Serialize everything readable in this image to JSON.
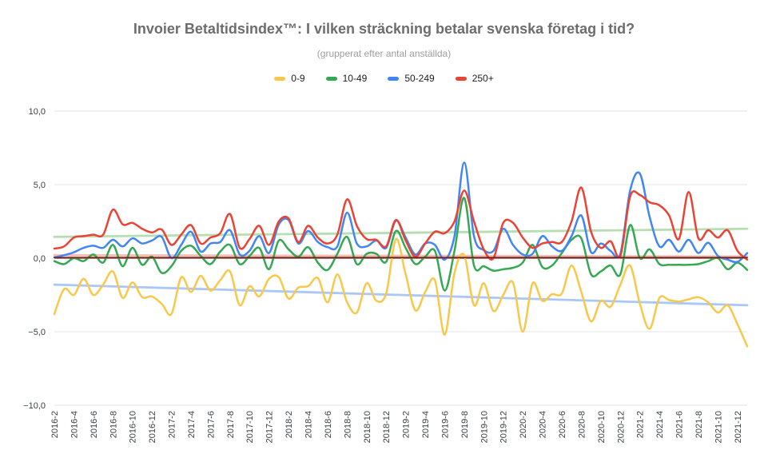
{
  "title": "Invoier Betaltidsindex™: I vilken sträckning betalar svenska företag i tid?",
  "subtitle": "(grupperat efter antal anställda)",
  "legend": [
    {
      "label": "0-9",
      "color": "#f8c84b"
    },
    {
      "label": "10-49",
      "color": "#34a853"
    },
    {
      "label": "50-249",
      "color": "#4285f4"
    },
    {
      "label": "250+",
      "color": "#ea4335"
    }
  ],
  "chart_data": {
    "type": "line",
    "smooth": true,
    "grid": true,
    "legend_position": "top",
    "ylim": [
      -10,
      10
    ],
    "yticks": [
      {
        "value": 10,
        "label": "10,0"
      },
      {
        "value": 5,
        "label": "5,0"
      },
      {
        "value": 0,
        "label": "0,0"
      },
      {
        "value": -5,
        "label": "−5,0"
      },
      {
        "value": -10,
        "label": "−10,0"
      }
    ],
    "x_tick_every": 2,
    "x": [
      "2016-2",
      "2016-3",
      "2016-4",
      "2016-5",
      "2016-6",
      "2016-7",
      "2016-8",
      "2016-9",
      "2016-10",
      "2016-11",
      "2016-12",
      "2017-1",
      "2017-2",
      "2017-3",
      "2017-4",
      "2017-5",
      "2017-6",
      "2017-7",
      "2017-8",
      "2017-9",
      "2017-10",
      "2017-11",
      "2017-12",
      "2018-1",
      "2018-2",
      "2018-3",
      "2018-4",
      "2018-5",
      "2018-6",
      "2018-7",
      "2018-8",
      "2018-9",
      "2018-10",
      "2018-11",
      "2018-12",
      "2019-1",
      "2019-2",
      "2019-3",
      "2019-4",
      "2019-5",
      "2019-6",
      "2019-7",
      "2019-8",
      "2019-9",
      "2019-10",
      "2019-11",
      "2019-12",
      "2020-1",
      "2020-2",
      "2020-3",
      "2020-4",
      "2020-5",
      "2020-6",
      "2020-7",
      "2020-8",
      "2020-9",
      "2020-10",
      "2020-11",
      "2020-12",
      "2021-1",
      "2021-2",
      "2021-3",
      "2021-4",
      "2021-5",
      "2021-6",
      "2021-7",
      "2021-8",
      "2021-9",
      "2021-10",
      "2021-11",
      "2021-12",
      "2022-1"
    ],
    "series": [
      {
        "name": "0-9",
        "color": "#f8c84b",
        "values": [
          -3.8,
          -2.1,
          -2.5,
          -1.4,
          -2.5,
          -1.8,
          -0.9,
          -2.7,
          -1.65,
          -2.65,
          -2.6,
          -3.1,
          -3.8,
          -1.3,
          -2.3,
          -1.2,
          -2.2,
          -1.5,
          -0.9,
          -3.2,
          -1.9,
          -2.6,
          -1.4,
          -1.3,
          -2.75,
          -2.0,
          -1.9,
          -1.35,
          -3.0,
          -1.1,
          -3.0,
          -3.7,
          -1.7,
          -2.9,
          -2.4,
          1.3,
          -1.1,
          -3.55,
          -2.3,
          -1.5,
          -5.2,
          -1.0,
          0.2,
          -3.2,
          -1.7,
          -3.6,
          -2.5,
          -1.65,
          -5.0,
          -1.7,
          -2.9,
          -2.45,
          -2.4,
          -0.5,
          -2.3,
          -4.3,
          -2.9,
          -3.3,
          -1.8,
          -0.5,
          -3.1,
          -4.8,
          -2.7,
          -2.85,
          -2.95,
          -2.8,
          -2.65,
          -3.0,
          -3.7,
          -3.2,
          -4.5,
          -6.0
        ]
      },
      {
        "name": "10-49",
        "color": "#34a853",
        "values": [
          -0.2,
          -0.4,
          0.0,
          -0.2,
          0.25,
          -0.3,
          0.9,
          -0.55,
          0.7,
          -0.45,
          0.1,
          -1.0,
          -0.55,
          0.5,
          0.85,
          0.15,
          -0.4,
          0.45,
          0.9,
          -0.4,
          0.15,
          0.7,
          -0.75,
          1.2,
          0.6,
          0.1,
          0.75,
          -0.3,
          -0.8,
          0.3,
          1.45,
          -0.4,
          0.3,
          0.3,
          -0.25,
          1.85,
          0.7,
          -0.4,
          0.1,
          0.5,
          -2.2,
          0.5,
          4.1,
          -0.5,
          -0.55,
          -0.85,
          -0.75,
          -0.65,
          -0.3,
          0.9,
          -0.6,
          -0.5,
          0.35,
          1.25,
          1.35,
          -1.1,
          -0.9,
          -0.5,
          -1.1,
          2.25,
          0.0,
          0.6,
          -0.4,
          -0.45,
          -0.45,
          -0.45,
          -0.4,
          -0.2,
          0.0,
          -0.75,
          -0.3,
          -0.8
        ]
      },
      {
        "name": "50-249",
        "color": "#4285f4",
        "values": [
          0.05,
          0.2,
          0.4,
          0.7,
          0.85,
          0.7,
          1.25,
          0.8,
          1.35,
          1.0,
          1.2,
          1.45,
          0.0,
          0.9,
          1.8,
          0.45,
          1.0,
          1.1,
          1.9,
          0.25,
          0.5,
          1.5,
          0.35,
          2.3,
          2.6,
          1.0,
          1.85,
          1.1,
          0.75,
          0.8,
          3.1,
          1.0,
          0.8,
          1.2,
          0.7,
          2.55,
          1.4,
          0.25,
          1.0,
          0.9,
          -0.1,
          1.5,
          6.5,
          1.5,
          0.55,
          0.5,
          2.0,
          0.9,
          0.25,
          0.3,
          1.5,
          0.8,
          0.5,
          1.5,
          2.9,
          0.4,
          1.0,
          0.5,
          0.3,
          4.6,
          5.75,
          2.8,
          0.8,
          1.25,
          0.45,
          1.25,
          0.35,
          1.05,
          0.15,
          -0.1,
          -0.25,
          0.35
        ]
      },
      {
        "name": "250+",
        "color": "#ea4335",
        "values": [
          0.65,
          0.8,
          1.4,
          1.5,
          1.6,
          1.6,
          3.3,
          2.3,
          2.4,
          2.0,
          1.75,
          1.95,
          0.9,
          1.6,
          2.25,
          1.0,
          1.4,
          1.7,
          3.0,
          0.7,
          1.3,
          2.2,
          0.9,
          2.5,
          2.7,
          1.1,
          2.2,
          1.4,
          1.0,
          1.6,
          4.0,
          2.2,
          1.3,
          1.25,
          0.8,
          2.6,
          1.2,
          0.1,
          1.0,
          1.8,
          1.7,
          2.5,
          4.6,
          2.5,
          0.6,
          0.0,
          2.4,
          2.4,
          1.4,
          0.7,
          1.0,
          1.1,
          1.1,
          2.5,
          4.8,
          1.8,
          0.7,
          1.15,
          0.15,
          4.2,
          4.3,
          3.8,
          3.6,
          2.9,
          1.3,
          4.5,
          1.35,
          1.9,
          1.4,
          1.9,
          0.5,
          -0.1
        ]
      }
    ],
    "trendlines": [
      {
        "name": "trend-light-green",
        "color": "#b5dfb1",
        "start": 1.45,
        "end": 2.0,
        "layer": "under",
        "width": 2.8
      },
      {
        "name": "trend-light-pink",
        "color": "#f4beb8",
        "start": 0.2,
        "end": 0.12,
        "layer": "under",
        "width": 2.8
      },
      {
        "name": "trend-light-blue",
        "color": "#a9c7f7",
        "start": -1.8,
        "end": -3.2,
        "layer": "under",
        "width": 2.8
      },
      {
        "name": "trend-dark-red",
        "color": "#7f1d10",
        "start": 0.04,
        "end": 0.04,
        "layer": "over",
        "width": 1.8
      }
    ],
    "axis_colors": {
      "gridline": "#e3e3e3",
      "zero_line": "#111111",
      "tick_text": "#3c4043"
    }
  }
}
